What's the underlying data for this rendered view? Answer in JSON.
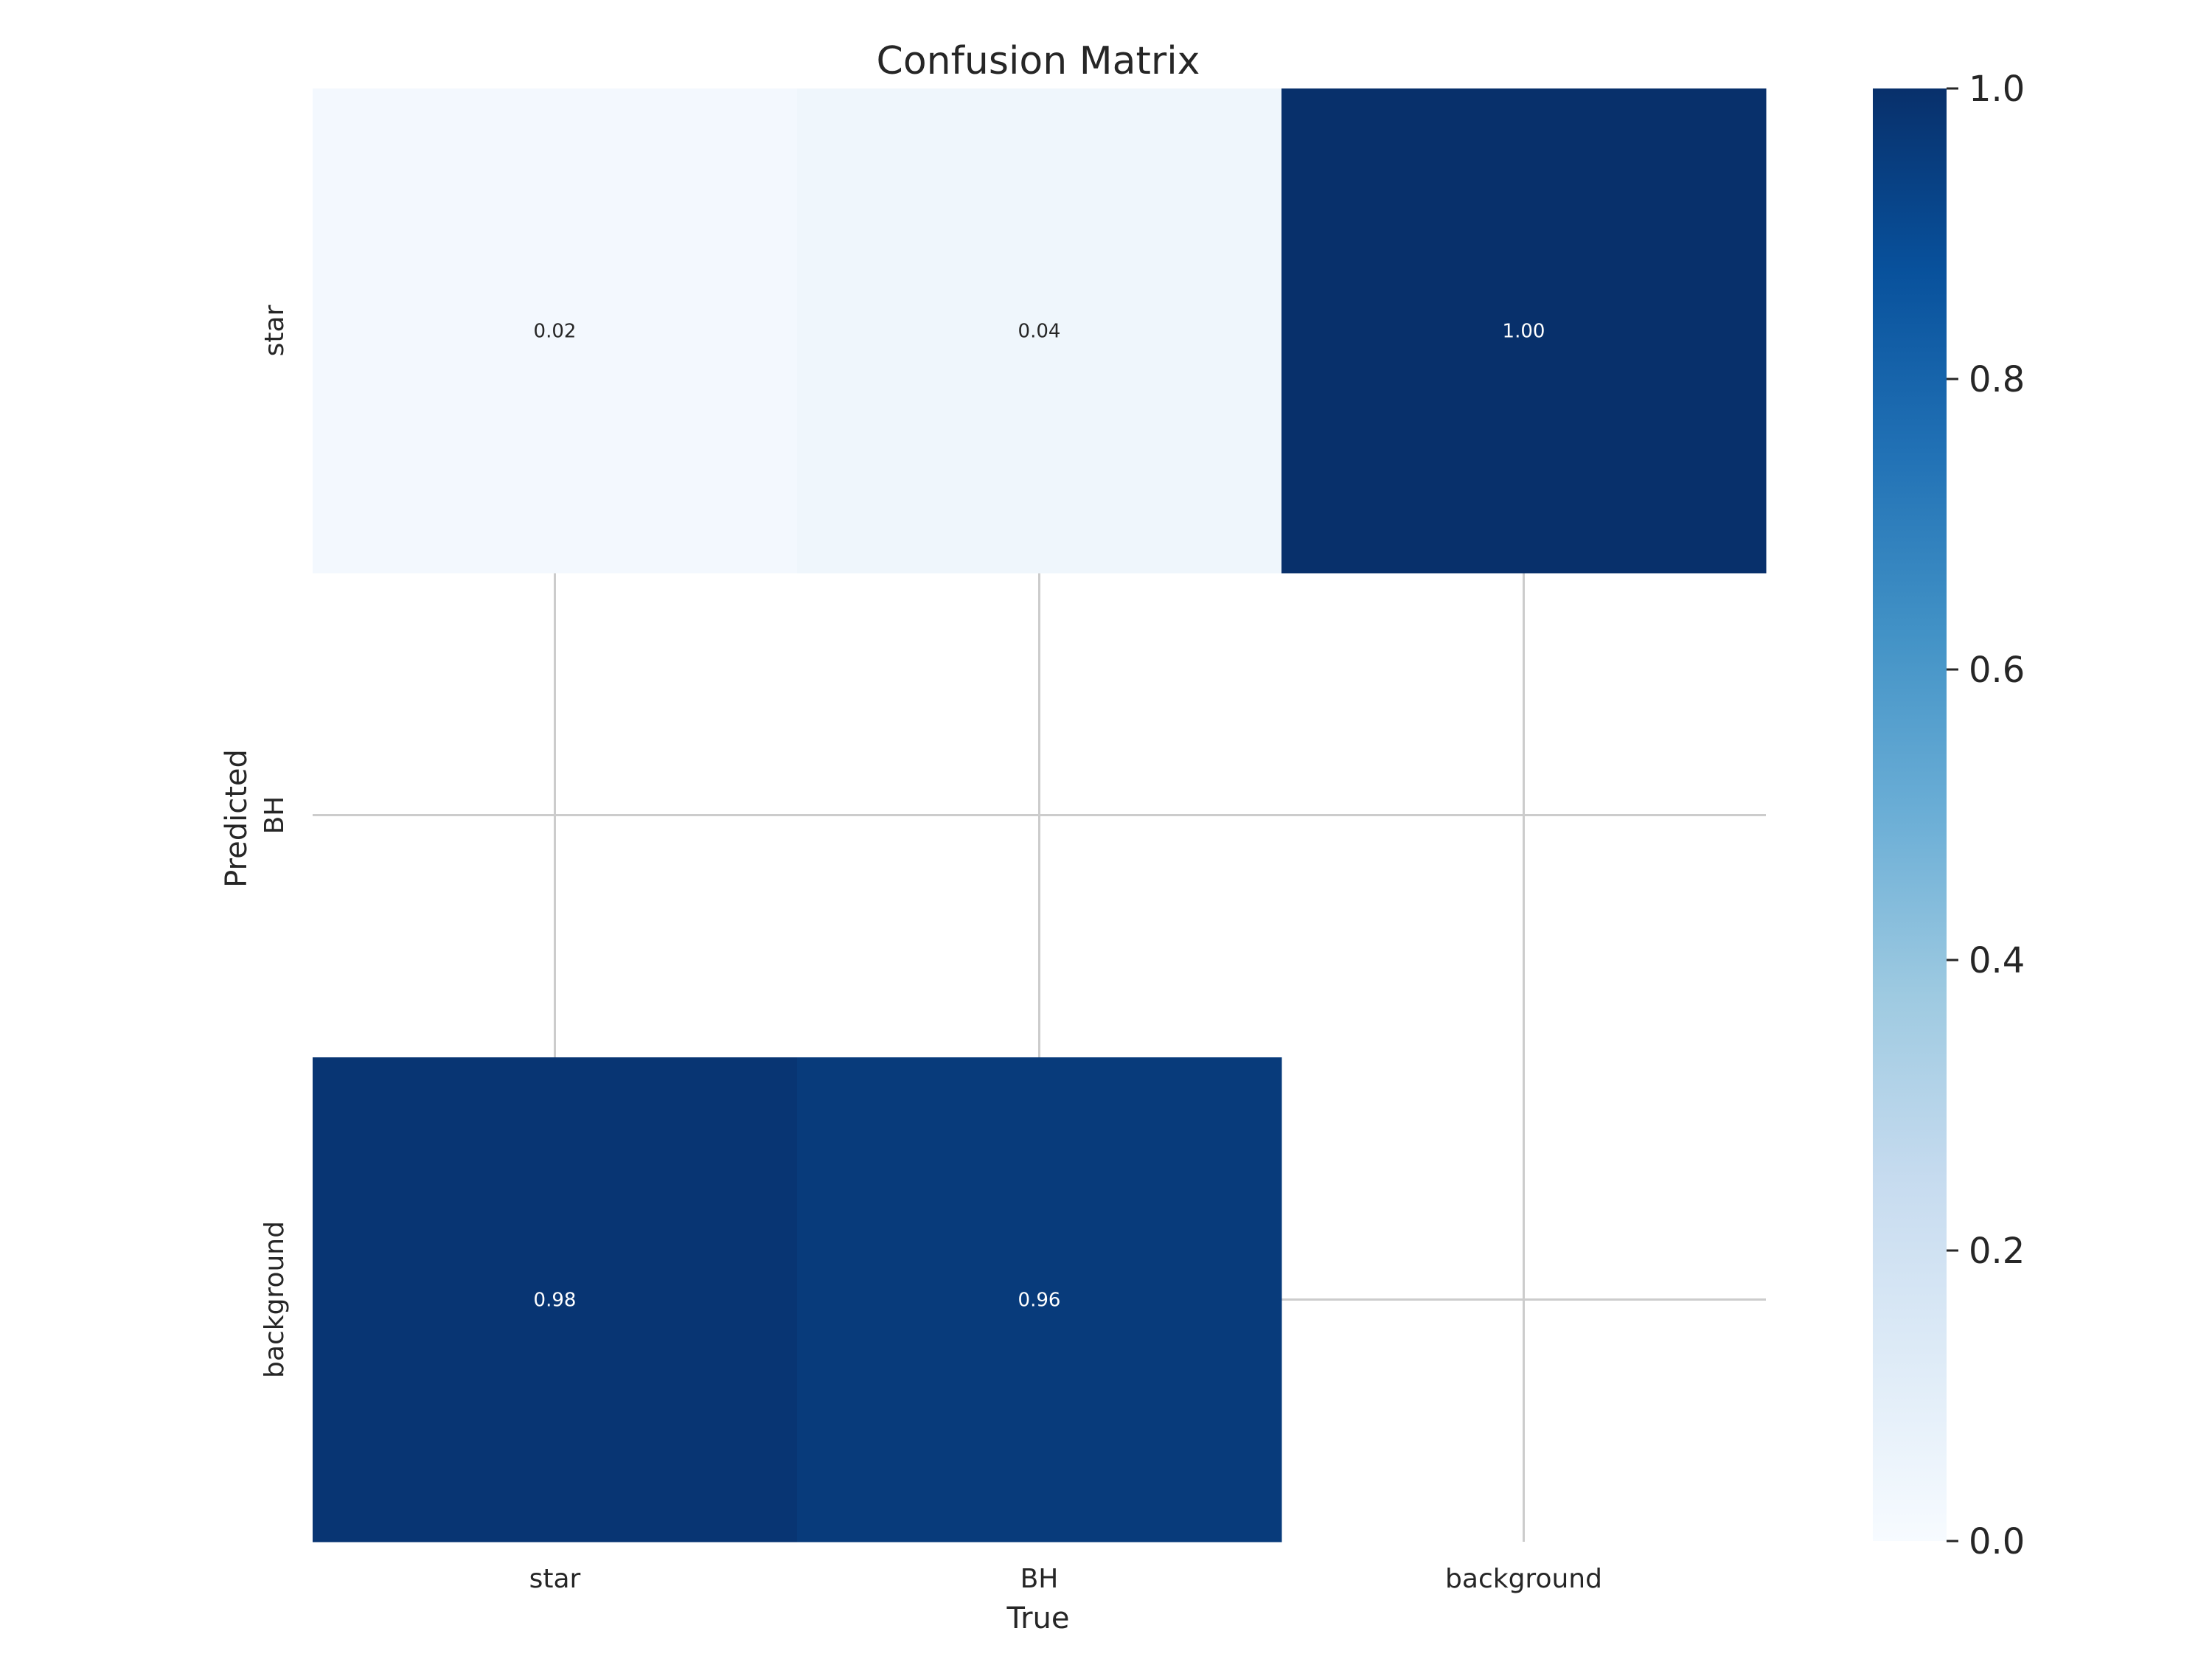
{
  "chart_data": {
    "type": "heatmap",
    "title": "Confusion Matrix",
    "xlabel": "True",
    "ylabel": "Predicted",
    "x_categories": [
      "star",
      "BH",
      "background"
    ],
    "y_categories": [
      "star",
      "BH",
      "background"
    ],
    "values": [
      [
        0.02,
        0.04,
        1.0
      ],
      [
        null,
        null,
        null
      ],
      [
        0.98,
        0.96,
        null
      ]
    ],
    "value_format": "2 decimals",
    "colormap": "Blues",
    "colorbar": {
      "range": [
        0.0,
        1.0
      ],
      "ticks": [
        0.0,
        0.2,
        0.4,
        0.6,
        0.8,
        1.0
      ],
      "tick_labels": [
        "0.0",
        "0.2",
        "0.4",
        "0.6",
        "0.8",
        "1.0"
      ]
    },
    "grid": true,
    "colors": {
      "grid": "#cccccc",
      "text_dark": "#262626",
      "text_light": "#ffffff"
    }
  }
}
